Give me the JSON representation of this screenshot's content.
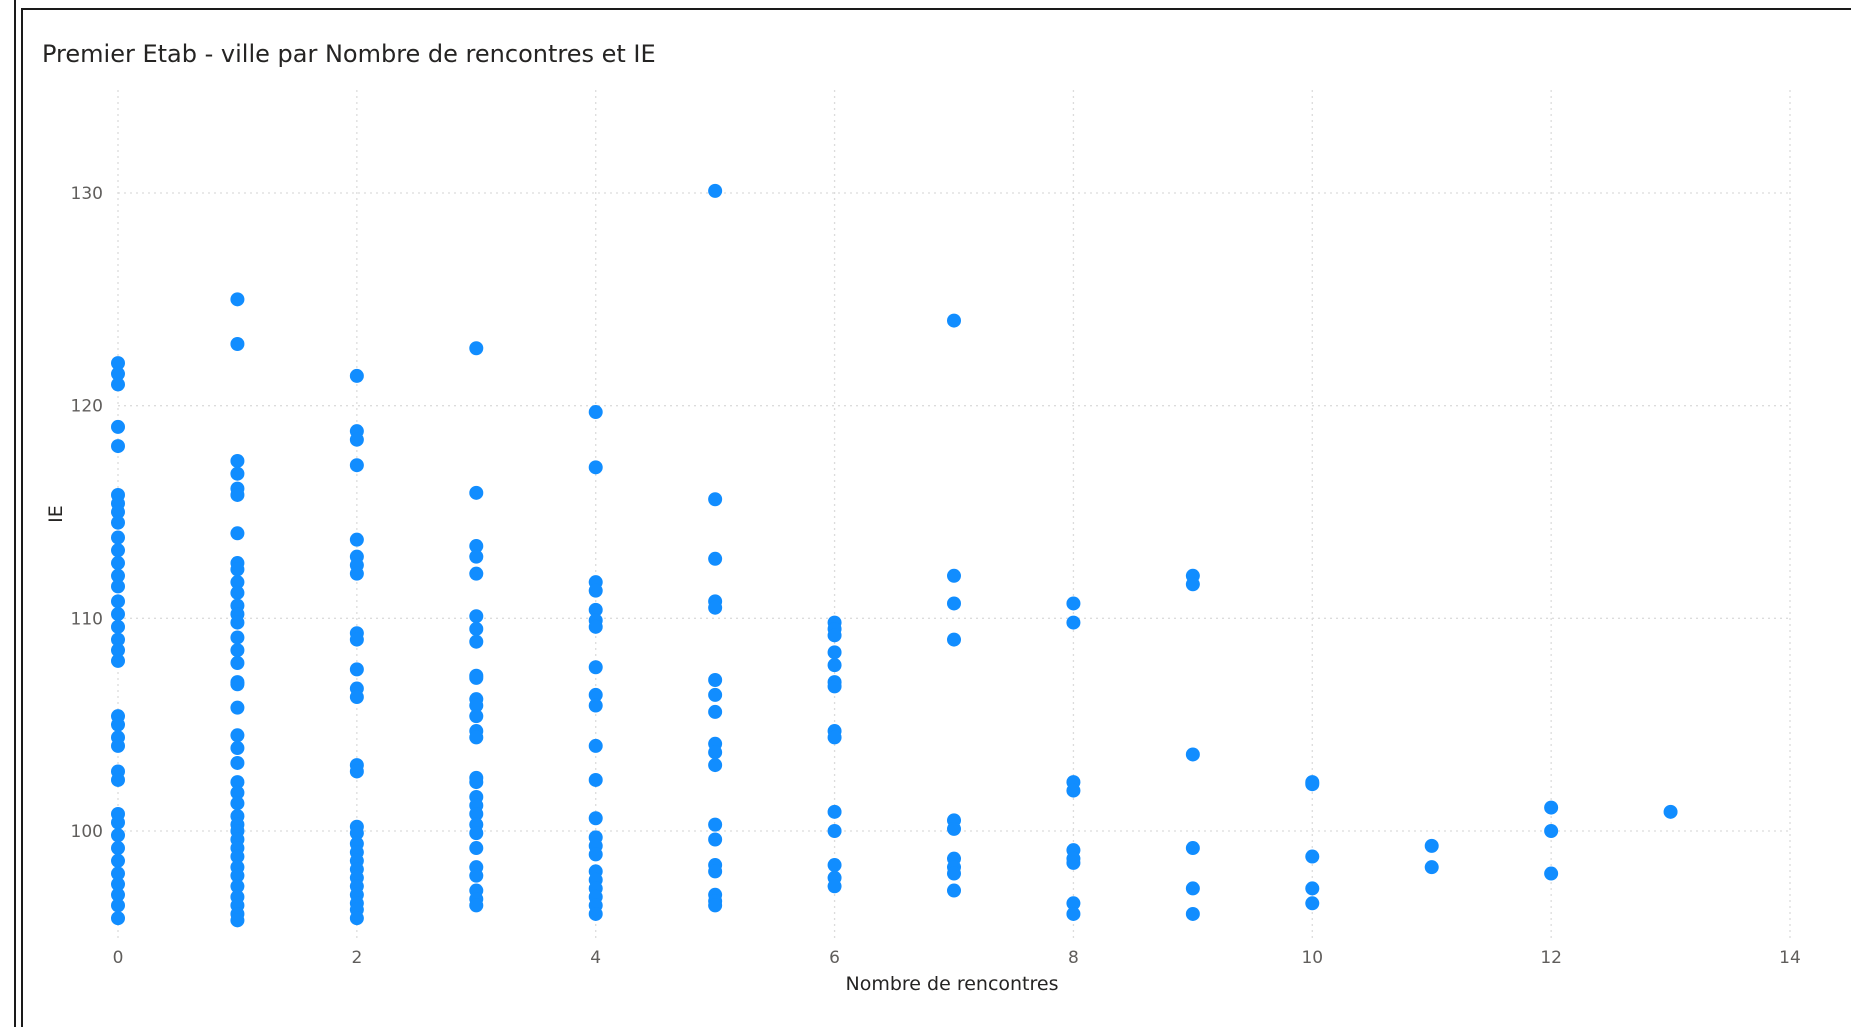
{
  "chart_data": {
    "type": "scatter",
    "title": "Premier Etab - ville par Nombre de rencontres et IE",
    "xlabel": "Nombre de rencontres",
    "ylabel": "IE",
    "xlim": [
      0,
      14
    ],
    "ylim": [
      95,
      134
    ],
    "x_ticks": [
      "0",
      "2",
      "4",
      "6",
      "8",
      "10",
      "12",
      "14"
    ],
    "y_ticks": [
      "100",
      "110",
      "120",
      "130"
    ],
    "grid": true,
    "color": "#118DFF",
    "points": [
      [
        0,
        122
      ],
      [
        0,
        121.5
      ],
      [
        0,
        121
      ],
      [
        0,
        119
      ],
      [
        0,
        118.1
      ],
      [
        0,
        115.8
      ],
      [
        0,
        115.4
      ],
      [
        0,
        115
      ],
      [
        0,
        114.5
      ],
      [
        0,
        113.8
      ],
      [
        0,
        113.2
      ],
      [
        0,
        112.6
      ],
      [
        0,
        112
      ],
      [
        0,
        111.5
      ],
      [
        0,
        110.8
      ],
      [
        0,
        110.2
      ],
      [
        0,
        109.6
      ],
      [
        0,
        109
      ],
      [
        0,
        108.5
      ],
      [
        0,
        108
      ],
      [
        0,
        105.4
      ],
      [
        0,
        105
      ],
      [
        0,
        104.4
      ],
      [
        0,
        104
      ],
      [
        0,
        102.8
      ],
      [
        0,
        102.4
      ],
      [
        0,
        100.8
      ],
      [
        0,
        100.4
      ],
      [
        0,
        99.8
      ],
      [
        0,
        99.2
      ],
      [
        0,
        98.6
      ],
      [
        0,
        98
      ],
      [
        0,
        97.5
      ],
      [
        0,
        97
      ],
      [
        0,
        96.5
      ],
      [
        0,
        95.9
      ],
      [
        1,
        125
      ],
      [
        1,
        122.9
      ],
      [
        1,
        117.4
      ],
      [
        1,
        116.8
      ],
      [
        1,
        116.1
      ],
      [
        1,
        115.8
      ],
      [
        1,
        114
      ],
      [
        1,
        112.6
      ],
      [
        1,
        112.3
      ],
      [
        1,
        111.7
      ],
      [
        1,
        111.2
      ],
      [
        1,
        110.6
      ],
      [
        1,
        110.2
      ],
      [
        1,
        109.8
      ],
      [
        1,
        109.1
      ],
      [
        1,
        108.5
      ],
      [
        1,
        107.9
      ],
      [
        1,
        107
      ],
      [
        1,
        106.9
      ],
      [
        1,
        105.8
      ],
      [
        1,
        104.5
      ],
      [
        1,
        103.9
      ],
      [
        1,
        103.2
      ],
      [
        1,
        102.3
      ],
      [
        1,
        101.8
      ],
      [
        1,
        101.3
      ],
      [
        1,
        100.7
      ],
      [
        1,
        100.3
      ],
      [
        1,
        100
      ],
      [
        1,
        99.6
      ],
      [
        1,
        99.2
      ],
      [
        1,
        98.8
      ],
      [
        1,
        98.3
      ],
      [
        1,
        97.9
      ],
      [
        1,
        97.4
      ],
      [
        1,
        96.9
      ],
      [
        1,
        96.5
      ],
      [
        1,
        96.1
      ],
      [
        1,
        95.8
      ],
      [
        2,
        121.4
      ],
      [
        2,
        118.8
      ],
      [
        2,
        118.4
      ],
      [
        2,
        117.2
      ],
      [
        2,
        113.7
      ],
      [
        2,
        112.9
      ],
      [
        2,
        112.5
      ],
      [
        2,
        112.1
      ],
      [
        2,
        109.3
      ],
      [
        2,
        109
      ],
      [
        2,
        107.6
      ],
      [
        2,
        106.7
      ],
      [
        2,
        106.3
      ],
      [
        2,
        103.1
      ],
      [
        2,
        102.8
      ],
      [
        2,
        100.2
      ],
      [
        2,
        99.9
      ],
      [
        2,
        99.4
      ],
      [
        2,
        99
      ],
      [
        2,
        98.6
      ],
      [
        2,
        98.2
      ],
      [
        2,
        97.8
      ],
      [
        2,
        97.4
      ],
      [
        2,
        97
      ],
      [
        2,
        96.6
      ],
      [
        2,
        96.3
      ],
      [
        2,
        95.9
      ],
      [
        3,
        122.7
      ],
      [
        3,
        115.9
      ],
      [
        3,
        113.4
      ],
      [
        3,
        112.9
      ],
      [
        3,
        112.1
      ],
      [
        3,
        110.1
      ],
      [
        3,
        109.5
      ],
      [
        3,
        108.9
      ],
      [
        3,
        107.3
      ],
      [
        3,
        107.2
      ],
      [
        3,
        106.2
      ],
      [
        3,
        105.9
      ],
      [
        3,
        105.4
      ],
      [
        3,
        104.7
      ],
      [
        3,
        104.4
      ],
      [
        3,
        102.5
      ],
      [
        3,
        102.3
      ],
      [
        3,
        101.6
      ],
      [
        3,
        101.2
      ],
      [
        3,
        100.8
      ],
      [
        3,
        100.3
      ],
      [
        3,
        99.9
      ],
      [
        3,
        99.2
      ],
      [
        3,
        98.3
      ],
      [
        3,
        97.9
      ],
      [
        3,
        97.2
      ],
      [
        3,
        96.8
      ],
      [
        3,
        96.5
      ],
      [
        4,
        119.7
      ],
      [
        4,
        117.1
      ],
      [
        4,
        111.7
      ],
      [
        4,
        111.3
      ],
      [
        4,
        110.4
      ],
      [
        4,
        109.9
      ],
      [
        4,
        109.6
      ],
      [
        4,
        107.7
      ],
      [
        4,
        106.4
      ],
      [
        4,
        105.9
      ],
      [
        4,
        104
      ],
      [
        4,
        102.4
      ],
      [
        4,
        100.6
      ],
      [
        4,
        99.7
      ],
      [
        4,
        99.3
      ],
      [
        4,
        98.9
      ],
      [
        4,
        98.1
      ],
      [
        4,
        97.7
      ],
      [
        4,
        97.3
      ],
      [
        4,
        96.9
      ],
      [
        4,
        96.5
      ],
      [
        4,
        96.1
      ],
      [
        5,
        130.1
      ],
      [
        5,
        115.6
      ],
      [
        5,
        112.8
      ],
      [
        5,
        110.8
      ],
      [
        5,
        110.5
      ],
      [
        5,
        107.1
      ],
      [
        5,
        106.4
      ],
      [
        5,
        105.6
      ],
      [
        5,
        104.1
      ],
      [
        5,
        103.7
      ],
      [
        5,
        103.1
      ],
      [
        5,
        100.3
      ],
      [
        5,
        99.6
      ],
      [
        5,
        98.4
      ],
      [
        5,
        98.1
      ],
      [
        5,
        97
      ],
      [
        5,
        96.7
      ],
      [
        5,
        96.5
      ],
      [
        6,
        109.8
      ],
      [
        6,
        109.5
      ],
      [
        6,
        109.2
      ],
      [
        6,
        108.4
      ],
      [
        6,
        107.8
      ],
      [
        6,
        107
      ],
      [
        6,
        106.8
      ],
      [
        6,
        104.7
      ],
      [
        6,
        104.4
      ],
      [
        6,
        100.9
      ],
      [
        6,
        100
      ],
      [
        6,
        98.4
      ],
      [
        6,
        97.8
      ],
      [
        6,
        97.4
      ],
      [
        7,
        124
      ],
      [
        7,
        112
      ],
      [
        7,
        110.7
      ],
      [
        7,
        109
      ],
      [
        7,
        100.5
      ],
      [
        7,
        100.1
      ],
      [
        7,
        98.7
      ],
      [
        7,
        98.3
      ],
      [
        7,
        98
      ],
      [
        7,
        97.2
      ],
      [
        8,
        110.7
      ],
      [
        8,
        109.8
      ],
      [
        8,
        102.3
      ],
      [
        8,
        101.9
      ],
      [
        8,
        99.1
      ],
      [
        8,
        98.7
      ],
      [
        8,
        98.5
      ],
      [
        8,
        96.6
      ],
      [
        8,
        96.1
      ],
      [
        9,
        112
      ],
      [
        9,
        111.6
      ],
      [
        9,
        103.6
      ],
      [
        9,
        99.2
      ],
      [
        9,
        97.3
      ],
      [
        9,
        96.1
      ],
      [
        10,
        102.3
      ],
      [
        10,
        102.2
      ],
      [
        10,
        98.8
      ],
      [
        10,
        97.3
      ],
      [
        10,
        96.6
      ],
      [
        11,
        99.3
      ],
      [
        11,
        98.3
      ],
      [
        12,
        101.1
      ],
      [
        12,
        100
      ],
      [
        12,
        98
      ],
      [
        13,
        100.9
      ]
    ]
  }
}
